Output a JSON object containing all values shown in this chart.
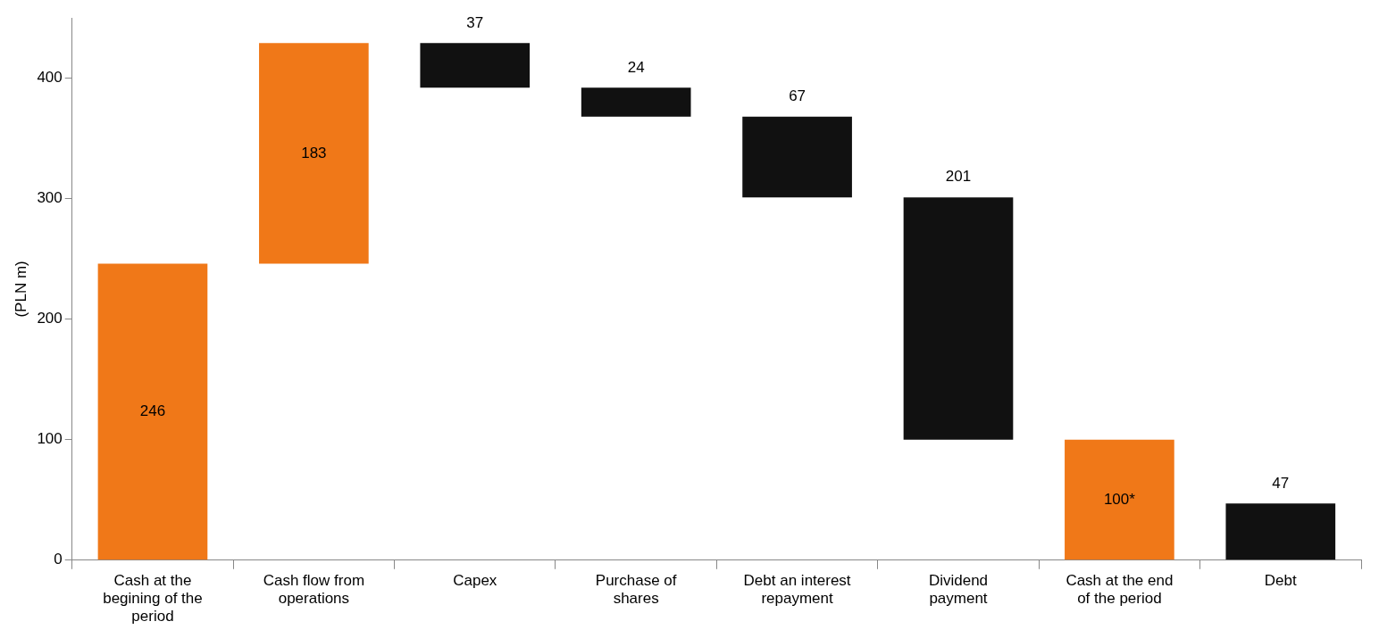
{
  "chart_data": {
    "type": "bar",
    "ylabel": "(PLN m)",
    "categories": [
      [
        "Cash at the",
        "begining of the",
        "period"
      ],
      [
        "Cash flow from",
        "operations"
      ],
      [
        "Capex"
      ],
      [
        "Purchase of",
        "shares"
      ],
      [
        "Debt an interest",
        "repayment"
      ],
      [
        "Dividend",
        "payment"
      ],
      [
        "Cash at the end",
        "of the period"
      ],
      [
        "Debt"
      ]
    ],
    "values": [
      246,
      183,
      37,
      24,
      67,
      201,
      100,
      47
    ],
    "base": [
      0,
      246,
      392,
      368,
      301,
      100,
      0,
      0
    ],
    "colors": [
      "#f07818",
      "#f07818",
      "#111111",
      "#111111",
      "#111111",
      "#111111",
      "#f07818",
      "#111111"
    ],
    "value_labels": [
      "246",
      "183",
      "37",
      "24",
      "67",
      "201",
      "100*",
      "47"
    ],
    "ylim": [
      0,
      450
    ],
    "yticks": [
      0,
      100,
      200,
      300,
      400
    ],
    "grid": false,
    "legend": false
  }
}
